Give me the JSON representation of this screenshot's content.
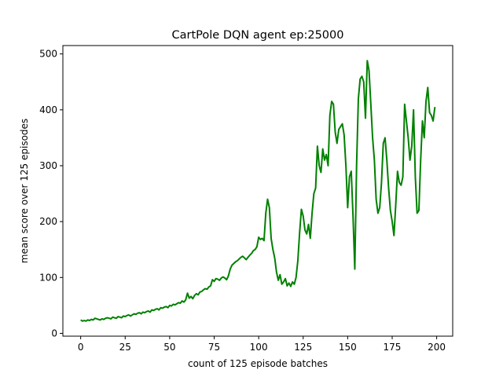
{
  "chart_data": {
    "type": "line",
    "title": "CartPole DQN agent ep:25000",
    "xlabel": "count of 125 episode batches",
    "ylabel": "mean score over 125 episodes",
    "xlim": [
      -10,
      209
    ],
    "ylim": [
      -5,
      515
    ],
    "xticks": [
      0,
      25,
      50,
      75,
      100,
      125,
      150,
      175,
      200
    ],
    "yticks": [
      0,
      100,
      200,
      300,
      400,
      500
    ],
    "grid": false,
    "line_color": "#008000",
    "series": [
      {
        "x": [
          0,
          1,
          2,
          3,
          4,
          5,
          6,
          7,
          8,
          9,
          10,
          11,
          12,
          13,
          14,
          15,
          16,
          17,
          18,
          19,
          20,
          21,
          22,
          23,
          24,
          25,
          26,
          27,
          28,
          29,
          30,
          31,
          32,
          33,
          34,
          35,
          36,
          37,
          38,
          39,
          40,
          41,
          42,
          43,
          44,
          45,
          46,
          47,
          48,
          49,
          50,
          51,
          52,
          53,
          54,
          55,
          56,
          57,
          58,
          59,
          60,
          61,
          62,
          63,
          64,
          65,
          66,
          67,
          68,
          69,
          70,
          71,
          72,
          73,
          74,
          75,
          76,
          77,
          78,
          79,
          80,
          81,
          82,
          83,
          84,
          85,
          86,
          87,
          88,
          89,
          90,
          91,
          92,
          93,
          94,
          95,
          96,
          97,
          98,
          99,
          100,
          101,
          102,
          103,
          104,
          105,
          106,
          107,
          108,
          109,
          110,
          111,
          112,
          113,
          114,
          115,
          116,
          117,
          118,
          119,
          120,
          121,
          122,
          123,
          124,
          125,
          126,
          127,
          128,
          129,
          130,
          131,
          132,
          133,
          134,
          135,
          136,
          137,
          138,
          139,
          140,
          141,
          142,
          143,
          144,
          145,
          146,
          147,
          148,
          149,
          150,
          151,
          152,
          153,
          154,
          155,
          156,
          157,
          158,
          159,
          160,
          161,
          162,
          163,
          164,
          165,
          166,
          167,
          168,
          169,
          170,
          171,
          172,
          173,
          174,
          175,
          176,
          177,
          178,
          179,
          180,
          181,
          182,
          183,
          184,
          185,
          186,
          187,
          188,
          189,
          190,
          191,
          192,
          193,
          194,
          195,
          196,
          197,
          198,
          199
        ],
        "values": [
          24,
          22,
          23,
          22,
          24,
          23,
          25,
          24,
          27,
          26,
          25,
          24,
          26,
          25,
          27,
          28,
          27,
          26,
          29,
          28,
          27,
          30,
          29,
          28,
          31,
          30,
          32,
          33,
          31,
          33,
          35,
          34,
          36,
          37,
          35,
          38,
          37,
          39,
          40,
          38,
          42,
          41,
          43,
          44,
          42,
          46,
          45,
          47,
          48,
          46,
          50,
          49,
          52,
          51,
          53,
          55,
          54,
          58,
          56,
          60,
          72,
          63,
          66,
          62,
          68,
          71,
          69,
          74,
          75,
          78,
          80,
          79,
          83,
          85,
          96,
          93,
          98,
          97,
          95,
          99,
          101,
          99,
          96,
          103,
          115,
          122,
          125,
          128,
          130,
          133,
          136,
          138,
          135,
          132,
          136,
          140,
          143,
          148,
          150,
          155,
          172,
          168,
          170,
          166,
          215,
          240,
          225,
          170,
          150,
          135,
          110,
          95,
          105,
          88,
          92,
          98,
          85,
          90,
          84,
          92,
          88,
          100,
          130,
          180,
          222,
          210,
          185,
          178,
          195,
          170,
          215,
          250,
          260,
          335,
          300,
          288,
          330,
          310,
          320,
          300,
          390,
          415,
          410,
          360,
          340,
          365,
          370,
          375,
          355,
          300,
          225,
          280,
          290,
          210,
          115,
          300,
          420,
          455,
          460,
          450,
          385,
          488,
          470,
          410,
          350,
          310,
          240,
          215,
          225,
          270,
          340,
          350,
          310,
          260,
          220,
          200,
          175,
          230,
          290,
          270,
          265,
          280,
          410,
          380,
          350,
          310,
          335,
          400,
          280,
          215,
          220,
          310,
          380,
          350,
          415,
          440,
          395,
          390,
          380,
          405
        ]
      }
    ]
  }
}
